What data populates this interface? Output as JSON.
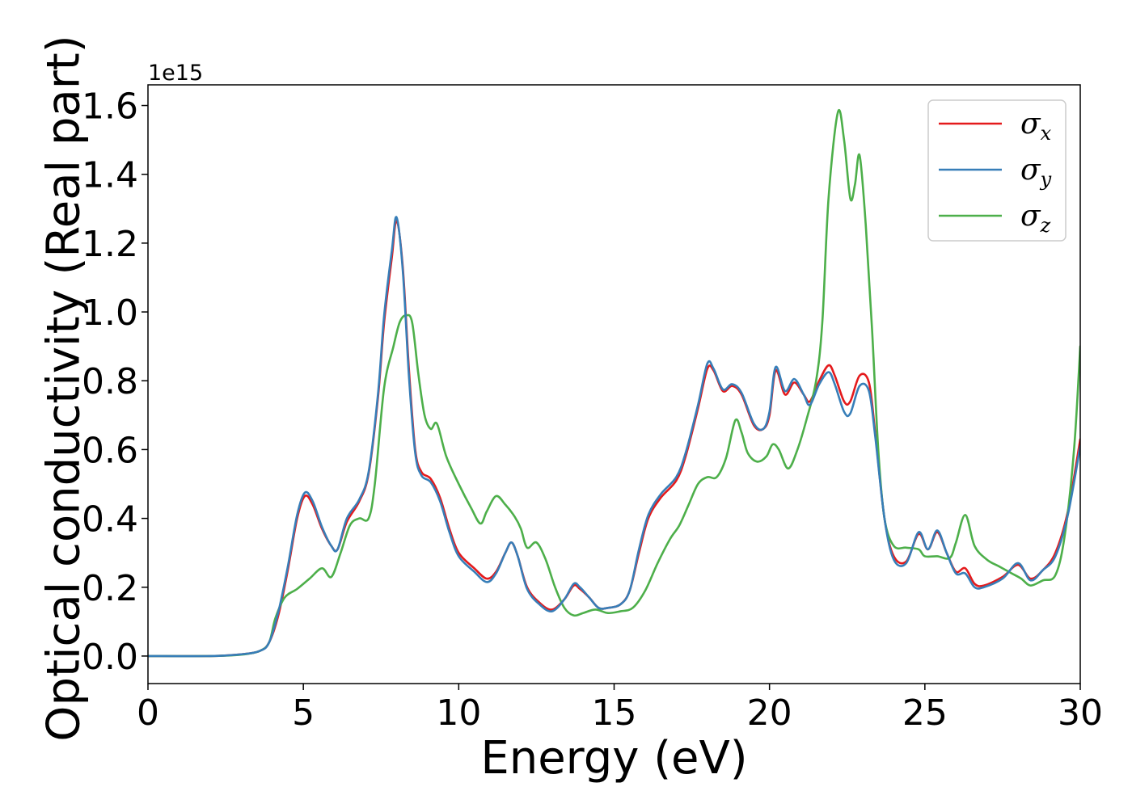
{
  "chart_data": {
    "type": "line",
    "title": "",
    "xlabel": "Energy (eV)",
    "ylabel": "Optical conductivity (Real part)",
    "y_offset_text": "1e15",
    "xlim": [
      0,
      30
    ],
    "ylim": [
      -0.08,
      1.66
    ],
    "xticks": [
      0,
      5,
      10,
      15,
      20,
      25,
      30
    ],
    "yticks": [
      0.0,
      0.2,
      0.4,
      0.6,
      0.8,
      1.0,
      1.2,
      1.4,
      1.6
    ],
    "xtick_labels": [
      "0",
      "5",
      "10",
      "15",
      "20",
      "25",
      "30"
    ],
    "ytick_labels": [
      "0.0",
      "0.2",
      "0.4",
      "0.6",
      "0.8",
      "1.0",
      "1.2",
      "1.4",
      "1.6"
    ],
    "grid": false,
    "legend_position": "top-right",
    "series": [
      {
        "name": "σ",
        "subscript": "x",
        "color": "#e41a1c",
        "points": [
          [
            0,
            0
          ],
          [
            2,
            0
          ],
          [
            3,
            0.005
          ],
          [
            3.6,
            0.015
          ],
          [
            3.9,
            0.04
          ],
          [
            4.2,
            0.12
          ],
          [
            4.5,
            0.25
          ],
          [
            4.8,
            0.4
          ],
          [
            5.05,
            0.465
          ],
          [
            5.3,
            0.44
          ],
          [
            5.6,
            0.37
          ],
          [
            5.9,
            0.32
          ],
          [
            6.1,
            0.31
          ],
          [
            6.4,
            0.39
          ],
          [
            6.8,
            0.45
          ],
          [
            7.1,
            0.53
          ],
          [
            7.4,
            0.75
          ],
          [
            7.6,
            0.97
          ],
          [
            7.85,
            1.16
          ],
          [
            8.0,
            1.265
          ],
          [
            8.2,
            1.13
          ],
          [
            8.4,
            0.83
          ],
          [
            8.6,
            0.6
          ],
          [
            8.8,
            0.535
          ],
          [
            9.1,
            0.515
          ],
          [
            9.4,
            0.46
          ],
          [
            9.7,
            0.37
          ],
          [
            10.0,
            0.3
          ],
          [
            10.5,
            0.255
          ],
          [
            10.9,
            0.225
          ],
          [
            11.2,
            0.245
          ],
          [
            11.5,
            0.3
          ],
          [
            11.7,
            0.33
          ],
          [
            11.9,
            0.29
          ],
          [
            12.2,
            0.2
          ],
          [
            12.6,
            0.155
          ],
          [
            13.0,
            0.135
          ],
          [
            13.4,
            0.165
          ],
          [
            13.7,
            0.205
          ],
          [
            13.9,
            0.195
          ],
          [
            14.2,
            0.17
          ],
          [
            14.5,
            0.14
          ],
          [
            14.8,
            0.14
          ],
          [
            15.2,
            0.15
          ],
          [
            15.5,
            0.19
          ],
          [
            15.8,
            0.3
          ],
          [
            16.1,
            0.4
          ],
          [
            16.5,
            0.46
          ],
          [
            17.0,
            0.51
          ],
          [
            17.3,
            0.58
          ],
          [
            17.7,
            0.72
          ],
          [
            18.0,
            0.835
          ],
          [
            18.2,
            0.83
          ],
          [
            18.5,
            0.77
          ],
          [
            18.8,
            0.785
          ],
          [
            19.1,
            0.76
          ],
          [
            19.5,
            0.67
          ],
          [
            19.8,
            0.66
          ],
          [
            20.0,
            0.7
          ],
          [
            20.2,
            0.83
          ],
          [
            20.5,
            0.76
          ],
          [
            20.8,
            0.795
          ],
          [
            21.1,
            0.76
          ],
          [
            21.3,
            0.74
          ],
          [
            21.6,
            0.8
          ],
          [
            21.9,
            0.845
          ],
          [
            22.1,
            0.815
          ],
          [
            22.4,
            0.74
          ],
          [
            22.6,
            0.74
          ],
          [
            22.9,
            0.815
          ],
          [
            23.2,
            0.795
          ],
          [
            23.4,
            0.65
          ],
          [
            23.7,
            0.4
          ],
          [
            24.0,
            0.29
          ],
          [
            24.4,
            0.275
          ],
          [
            24.8,
            0.355
          ],
          [
            25.1,
            0.31
          ],
          [
            25.4,
            0.36
          ],
          [
            25.7,
            0.3
          ],
          [
            26.0,
            0.245
          ],
          [
            26.3,
            0.255
          ],
          [
            26.6,
            0.21
          ],
          [
            26.9,
            0.205
          ],
          [
            27.5,
            0.23
          ],
          [
            28.0,
            0.265
          ],
          [
            28.4,
            0.225
          ],
          [
            28.8,
            0.25
          ],
          [
            29.2,
            0.3
          ],
          [
            29.6,
            0.42
          ],
          [
            30.0,
            0.63
          ]
        ]
      },
      {
        "name": "σ",
        "subscript": "y",
        "color": "#377eb8",
        "points": [
          [
            0,
            0
          ],
          [
            2,
            0
          ],
          [
            3,
            0.005
          ],
          [
            3.6,
            0.015
          ],
          [
            3.9,
            0.04
          ],
          [
            4.2,
            0.13
          ],
          [
            4.5,
            0.26
          ],
          [
            4.8,
            0.41
          ],
          [
            5.05,
            0.475
          ],
          [
            5.3,
            0.45
          ],
          [
            5.6,
            0.375
          ],
          [
            5.9,
            0.32
          ],
          [
            6.1,
            0.31
          ],
          [
            6.4,
            0.4
          ],
          [
            6.8,
            0.455
          ],
          [
            7.1,
            0.535
          ],
          [
            7.4,
            0.76
          ],
          [
            7.6,
            0.99
          ],
          [
            7.85,
            1.18
          ],
          [
            8.0,
            1.275
          ],
          [
            8.2,
            1.12
          ],
          [
            8.4,
            0.81
          ],
          [
            8.6,
            0.59
          ],
          [
            8.8,
            0.525
          ],
          [
            9.1,
            0.505
          ],
          [
            9.4,
            0.45
          ],
          [
            9.7,
            0.36
          ],
          [
            10.0,
            0.29
          ],
          [
            10.5,
            0.245
          ],
          [
            10.9,
            0.215
          ],
          [
            11.2,
            0.24
          ],
          [
            11.5,
            0.3
          ],
          [
            11.7,
            0.33
          ],
          [
            11.9,
            0.29
          ],
          [
            12.2,
            0.195
          ],
          [
            12.6,
            0.15
          ],
          [
            13.0,
            0.13
          ],
          [
            13.4,
            0.165
          ],
          [
            13.7,
            0.21
          ],
          [
            13.9,
            0.2
          ],
          [
            14.2,
            0.17
          ],
          [
            14.5,
            0.14
          ],
          [
            14.8,
            0.14
          ],
          [
            15.2,
            0.15
          ],
          [
            15.5,
            0.19
          ],
          [
            15.8,
            0.31
          ],
          [
            16.1,
            0.41
          ],
          [
            16.5,
            0.47
          ],
          [
            17.0,
            0.52
          ],
          [
            17.3,
            0.59
          ],
          [
            17.7,
            0.73
          ],
          [
            18.0,
            0.85
          ],
          [
            18.2,
            0.835
          ],
          [
            18.5,
            0.775
          ],
          [
            18.8,
            0.79
          ],
          [
            19.1,
            0.765
          ],
          [
            19.5,
            0.675
          ],
          [
            19.8,
            0.66
          ],
          [
            20.0,
            0.71
          ],
          [
            20.2,
            0.84
          ],
          [
            20.5,
            0.77
          ],
          [
            20.8,
            0.805
          ],
          [
            21.1,
            0.76
          ],
          [
            21.3,
            0.73
          ],
          [
            21.6,
            0.79
          ],
          [
            21.9,
            0.825
          ],
          [
            22.1,
            0.79
          ],
          [
            22.4,
            0.71
          ],
          [
            22.6,
            0.705
          ],
          [
            22.9,
            0.785
          ],
          [
            23.2,
            0.77
          ],
          [
            23.4,
            0.64
          ],
          [
            23.7,
            0.4
          ],
          [
            24.0,
            0.28
          ],
          [
            24.4,
            0.27
          ],
          [
            24.8,
            0.36
          ],
          [
            25.1,
            0.31
          ],
          [
            25.4,
            0.365
          ],
          [
            25.7,
            0.3
          ],
          [
            26.0,
            0.24
          ],
          [
            26.3,
            0.24
          ],
          [
            26.6,
            0.2
          ],
          [
            26.9,
            0.2
          ],
          [
            27.5,
            0.225
          ],
          [
            28.0,
            0.27
          ],
          [
            28.4,
            0.22
          ],
          [
            28.8,
            0.25
          ],
          [
            29.2,
            0.29
          ],
          [
            29.6,
            0.41
          ],
          [
            30.0,
            0.61
          ]
        ]
      },
      {
        "name": "σ",
        "subscript": "z",
        "color": "#4daf4a",
        "points": [
          [
            0,
            0
          ],
          [
            2,
            0
          ],
          [
            3,
            0.004
          ],
          [
            3.6,
            0.015
          ],
          [
            3.9,
            0.04
          ],
          [
            4.1,
            0.11
          ],
          [
            4.4,
            0.17
          ],
          [
            4.8,
            0.195
          ],
          [
            5.2,
            0.225
          ],
          [
            5.6,
            0.255
          ],
          [
            5.9,
            0.23
          ],
          [
            6.2,
            0.3
          ],
          [
            6.5,
            0.38
          ],
          [
            6.8,
            0.4
          ],
          [
            7.1,
            0.4
          ],
          [
            7.3,
            0.5
          ],
          [
            7.6,
            0.78
          ],
          [
            7.9,
            0.9
          ],
          [
            8.1,
            0.97
          ],
          [
            8.3,
            0.99
          ],
          [
            8.5,
            0.97
          ],
          [
            8.7,
            0.82
          ],
          [
            8.9,
            0.7
          ],
          [
            9.1,
            0.66
          ],
          [
            9.3,
            0.675
          ],
          [
            9.6,
            0.58
          ],
          [
            10.0,
            0.5
          ],
          [
            10.4,
            0.43
          ],
          [
            10.7,
            0.385
          ],
          [
            10.9,
            0.42
          ],
          [
            11.2,
            0.465
          ],
          [
            11.5,
            0.44
          ],
          [
            11.8,
            0.405
          ],
          [
            12.0,
            0.37
          ],
          [
            12.2,
            0.315
          ],
          [
            12.5,
            0.33
          ],
          [
            12.8,
            0.28
          ],
          [
            13.1,
            0.2
          ],
          [
            13.4,
            0.14
          ],
          [
            13.7,
            0.118
          ],
          [
            14.0,
            0.125
          ],
          [
            14.4,
            0.135
          ],
          [
            14.8,
            0.125
          ],
          [
            15.2,
            0.13
          ],
          [
            15.6,
            0.14
          ],
          [
            16.0,
            0.19
          ],
          [
            16.4,
            0.27
          ],
          [
            16.8,
            0.34
          ],
          [
            17.1,
            0.38
          ],
          [
            17.4,
            0.44
          ],
          [
            17.7,
            0.5
          ],
          [
            18.0,
            0.52
          ],
          [
            18.3,
            0.52
          ],
          [
            18.6,
            0.575
          ],
          [
            18.9,
            0.685
          ],
          [
            19.1,
            0.65
          ],
          [
            19.3,
            0.59
          ],
          [
            19.6,
            0.565
          ],
          [
            19.9,
            0.58
          ],
          [
            20.1,
            0.615
          ],
          [
            20.3,
            0.6
          ],
          [
            20.6,
            0.545
          ],
          [
            20.9,
            0.6
          ],
          [
            21.2,
            0.69
          ],
          [
            21.5,
            0.8
          ],
          [
            21.7,
            0.97
          ],
          [
            21.9,
            1.33
          ],
          [
            22.2,
            1.58
          ],
          [
            22.4,
            1.5
          ],
          [
            22.6,
            1.33
          ],
          [
            22.75,
            1.37
          ],
          [
            22.9,
            1.455
          ],
          [
            23.1,
            1.25
          ],
          [
            23.3,
            0.95
          ],
          [
            23.5,
            0.6
          ],
          [
            23.7,
            0.4
          ],
          [
            24.0,
            0.32
          ],
          [
            24.4,
            0.315
          ],
          [
            24.8,
            0.31
          ],
          [
            25.0,
            0.29
          ],
          [
            25.4,
            0.29
          ],
          [
            25.8,
            0.285
          ],
          [
            26.0,
            0.33
          ],
          [
            26.3,
            0.41
          ],
          [
            26.6,
            0.32
          ],
          [
            27.0,
            0.28
          ],
          [
            27.4,
            0.26
          ],
          [
            27.8,
            0.24
          ],
          [
            28.1,
            0.225
          ],
          [
            28.4,
            0.205
          ],
          [
            28.8,
            0.22
          ],
          [
            29.2,
            0.235
          ],
          [
            29.5,
            0.35
          ],
          [
            29.8,
            0.6
          ],
          [
            30.0,
            0.9
          ]
        ]
      }
    ]
  }
}
